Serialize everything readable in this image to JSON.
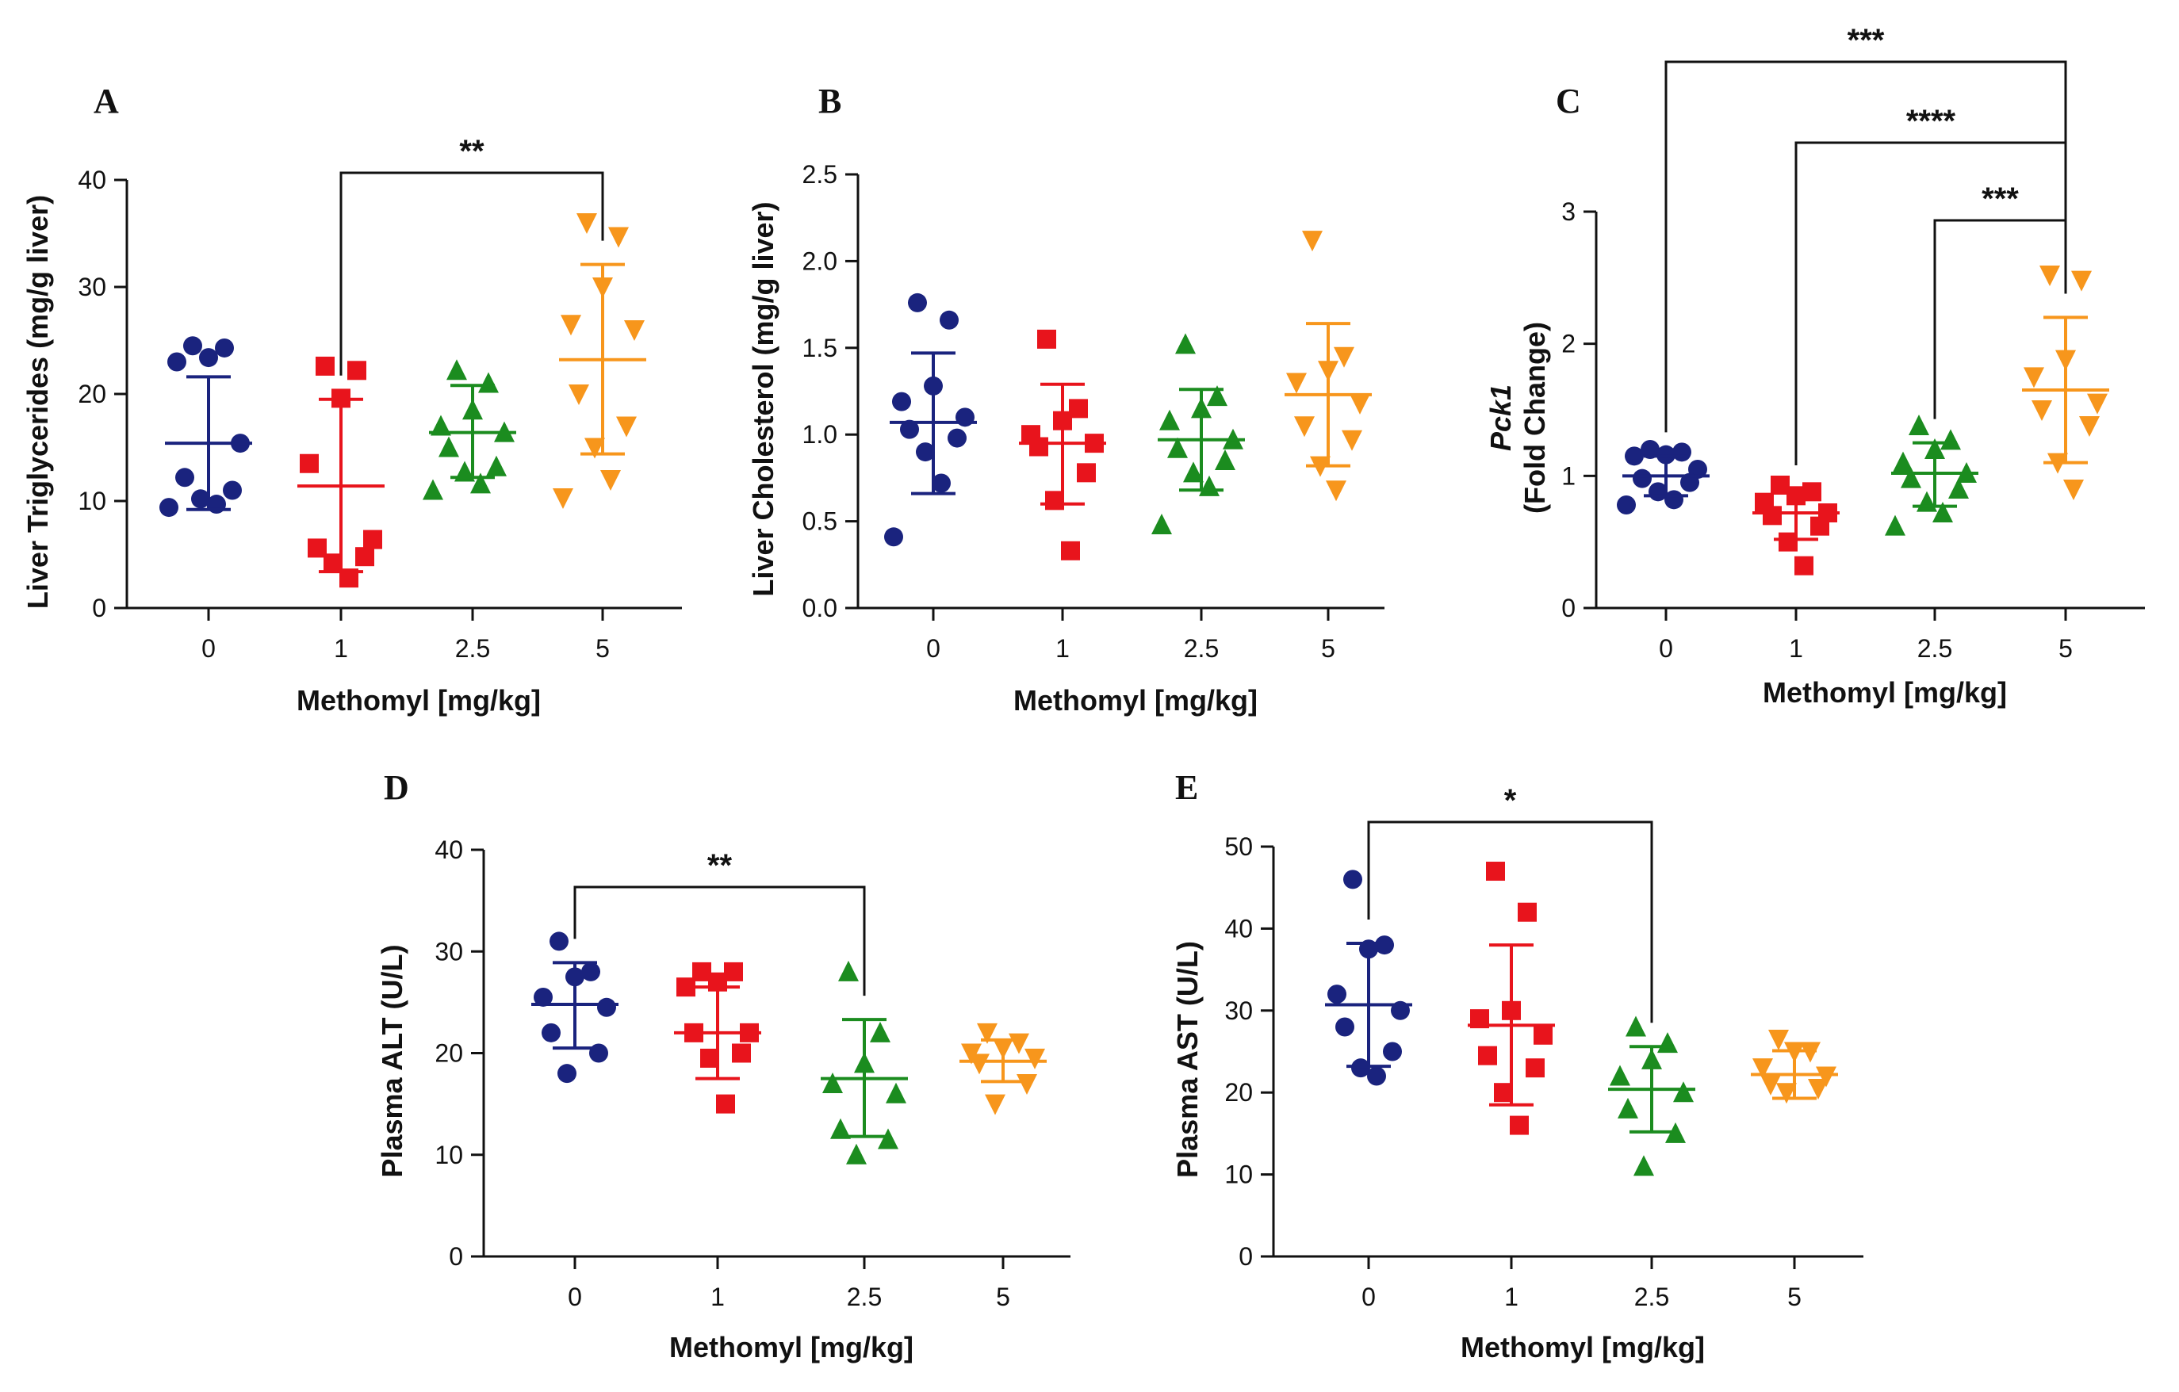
{
  "figure": {
    "x_axis_title": "Methomyl [mg/kg]",
    "group_colors": [
      "#1a237e",
      "#e8141c",
      "#1b8c1f",
      "#f7961c"
    ],
    "group_markers": [
      "circle",
      "square",
      "triangle-up",
      "triangle-down"
    ]
  },
  "chart_data": [
    {
      "id": "A",
      "letter": "A",
      "type": "scatter",
      "categories": [
        "0",
        "1",
        "2.5",
        "5"
      ],
      "ylabel": "Liver Triglycerides (mg/g liver)",
      "ylabel_italic": "",
      "xlabel": "Methomyl [mg/kg]",
      "ylim": [
        0,
        40
      ],
      "yticks": [
        0,
        10,
        20,
        30,
        40
      ],
      "ytick_labels": [
        "0",
        "10",
        "20",
        "30",
        "40"
      ],
      "groups": [
        {
          "mean": 15.4,
          "sd_low": 9.2,
          "sd_high": 21.6,
          "points": [
            24.5,
            24.3,
            23.4,
            23.0,
            15.4,
            12.2,
            11.0,
            10.2,
            9.7,
            9.4
          ]
        },
        {
          "mean": 11.4,
          "sd_low": 3.4,
          "sd_high": 19.5,
          "points": [
            22.6,
            22.2,
            19.6,
            13.5,
            6.4,
            5.6,
            4.8,
            4.2,
            2.8
          ]
        },
        {
          "mean": 16.4,
          "sd_low": 12.2,
          "sd_high": 20.8,
          "points": [
            22.2,
            21.0,
            18.5,
            17.0,
            16.4,
            15.0,
            13.2,
            12.7,
            11.6,
            11.0
          ]
        },
        {
          "mean": 23.2,
          "sd_low": 14.4,
          "sd_high": 32.1,
          "points": [
            36.0,
            34.7,
            30.0,
            26.5,
            26.0,
            20.0,
            17.0,
            15.0,
            12.0,
            10.3
          ]
        }
      ],
      "significance": [
        {
          "from": 1,
          "to": 3,
          "label": "**"
        }
      ]
    },
    {
      "id": "B",
      "letter": "B",
      "type": "scatter",
      "categories": [
        "0",
        "1",
        "2.5",
        "5"
      ],
      "ylabel": "Liver Cholesterol (mg/g liver)",
      "ylabel_italic": "",
      "xlabel": "Methomyl [mg/kg]",
      "ylim": [
        0,
        2.5
      ],
      "yticks": [
        0,
        0.5,
        1.0,
        1.5,
        2.0,
        2.5
      ],
      "ytick_labels": [
        "0.0",
        "0.5",
        "1.0",
        "1.5",
        "2.0",
        "2.5"
      ],
      "groups": [
        {
          "mean": 1.07,
          "sd_low": 0.66,
          "sd_high": 1.47,
          "points": [
            1.76,
            1.66,
            1.28,
            1.19,
            1.1,
            1.03,
            0.98,
            0.9,
            0.72,
            0.41
          ]
        },
        {
          "mean": 0.95,
          "sd_low": 0.6,
          "sd_high": 1.29,
          "points": [
            1.55,
            1.15,
            1.08,
            1.0,
            0.95,
            0.93,
            0.78,
            0.62,
            0.33
          ]
        },
        {
          "mean": 0.97,
          "sd_low": 0.68,
          "sd_high": 1.26,
          "points": [
            1.52,
            1.22,
            1.15,
            1.08,
            0.97,
            0.92,
            0.85,
            0.78,
            0.7,
            0.48
          ]
        },
        {
          "mean": 1.23,
          "sd_low": 0.82,
          "sd_high": 1.64,
          "points": [
            2.12,
            1.45,
            1.37,
            1.3,
            1.18,
            1.05,
            0.97,
            0.82,
            0.68
          ]
        }
      ],
      "significance": []
    },
    {
      "id": "C",
      "letter": "C",
      "type": "scatter",
      "categories": [
        "0",
        "1",
        "2.5",
        "5"
      ],
      "ylabel": "(Fold Change)",
      "ylabel_italic": "Pck1",
      "xlabel": "Methomyl [mg/kg]",
      "ylim": [
        0,
        3
      ],
      "yticks": [
        0,
        1,
        2,
        3
      ],
      "ytick_labels": [
        "0",
        "1",
        "2",
        "3"
      ],
      "groups": [
        {
          "mean": 1.0,
          "sd_low": 0.85,
          "sd_high": 1.15,
          "points": [
            1.2,
            1.18,
            1.16,
            1.15,
            1.05,
            0.98,
            0.95,
            0.88,
            0.82,
            0.78
          ]
        },
        {
          "mean": 0.72,
          "sd_low": 0.52,
          "sd_high": 0.9,
          "points": [
            0.93,
            0.88,
            0.85,
            0.8,
            0.72,
            0.7,
            0.62,
            0.5,
            0.32
          ]
        },
        {
          "mean": 1.02,
          "sd_low": 0.77,
          "sd_high": 1.25,
          "points": [
            1.38,
            1.27,
            1.2,
            1.1,
            1.02,
            0.98,
            0.9,
            0.8,
            0.72,
            0.62
          ]
        },
        {
          "mean": 1.65,
          "sd_low": 1.1,
          "sd_high": 2.2,
          "points": [
            2.52,
            2.48,
            1.88,
            1.75,
            1.55,
            1.5,
            1.38,
            1.1,
            0.9
          ]
        }
      ],
      "significance": [
        {
          "from": 0,
          "to": 3,
          "label": "***"
        },
        {
          "from": 1,
          "to": 3,
          "label": "****"
        },
        {
          "from": 2,
          "to": 3,
          "label": "***"
        }
      ]
    },
    {
      "id": "D",
      "letter": "D",
      "type": "scatter",
      "categories": [
        "0",
        "1",
        "2.5",
        "5"
      ],
      "ylabel": "Plasma ALT (U/L)",
      "ylabel_italic": "",
      "xlabel": "Methomyl [mg/kg]",
      "ylim": [
        0,
        40
      ],
      "yticks": [
        0,
        10,
        20,
        30,
        40
      ],
      "ytick_labels": [
        "0",
        "10",
        "20",
        "30",
        "40"
      ],
      "groups": [
        {
          "mean": 24.8,
          "sd_low": 20.5,
          "sd_high": 28.9,
          "points": [
            31.0,
            28.0,
            27.5,
            25.5,
            24.5,
            22.0,
            20.0,
            18.0
          ]
        },
        {
          "mean": 22.0,
          "sd_low": 17.5,
          "sd_high": 26.5,
          "points": [
            28.0,
            28.0,
            27.0,
            26.5,
            22.0,
            22.0,
            20.0,
            19.5,
            15.0
          ]
        },
        {
          "mean": 17.5,
          "sd_low": 11.8,
          "sd_high": 23.3,
          "points": [
            28.0,
            22.0,
            19.0,
            17.0,
            16.0,
            12.5,
            11.5,
            10.0
          ]
        },
        {
          "mean": 19.2,
          "sd_low": 17.2,
          "sd_high": 21.3,
          "points": [
            22.0,
            21.0,
            20.5,
            20.0,
            19.5,
            19.0,
            17.0,
            15.0
          ]
        }
      ],
      "significance": [
        {
          "from": 0,
          "to": 2,
          "label": "**"
        }
      ]
    },
    {
      "id": "E",
      "letter": "E",
      "type": "scatter",
      "categories": [
        "0",
        "1",
        "2.5",
        "5"
      ],
      "ylabel": "Plasma AST (U/L)",
      "ylabel_italic": "",
      "xlabel": "Methomyl [mg/kg]",
      "ylim": [
        0,
        50
      ],
      "yticks": [
        0,
        10,
        20,
        30,
        40,
        50
      ],
      "ytick_labels": [
        "0",
        "10",
        "20",
        "30",
        "40",
        "50"
      ],
      "groups": [
        {
          "mean": 30.7,
          "sd_low": 23.2,
          "sd_high": 38.2,
          "points": [
            46.0,
            38.0,
            37.5,
            32.0,
            30.0,
            28.0,
            25.0,
            23.0,
            22.0
          ]
        },
        {
          "mean": 28.2,
          "sd_low": 18.5,
          "sd_high": 38.0,
          "points": [
            47.0,
            42.0,
            30.0,
            29.0,
            27.0,
            24.5,
            23.0,
            20.0,
            16.0
          ]
        },
        {
          "mean": 20.4,
          "sd_low": 15.2,
          "sd_high": 25.6,
          "points": [
            28.0,
            26.0,
            24.0,
            22.0,
            20.0,
            18.0,
            15.0,
            11.0
          ]
        },
        {
          "mean": 22.2,
          "sd_low": 19.3,
          "sd_high": 25.1,
          "points": [
            26.5,
            25.0,
            25.0,
            23.0,
            22.0,
            21.0,
            20.5,
            20.0
          ]
        }
      ],
      "significance": [
        {
          "from": 0,
          "to": 2,
          "label": "*"
        }
      ]
    }
  ]
}
